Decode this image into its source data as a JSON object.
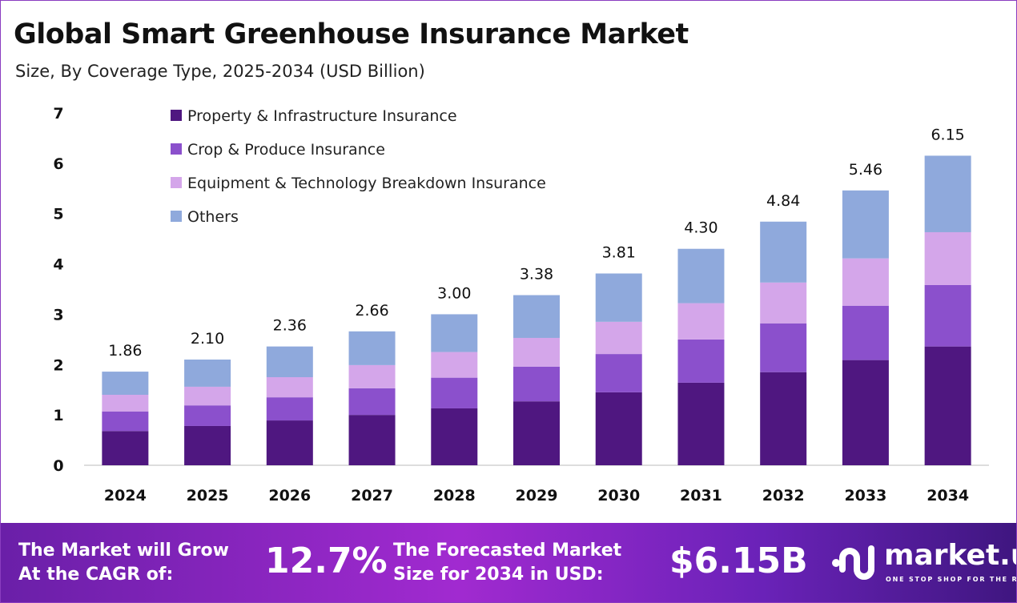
{
  "header": {
    "title": "Global Smart Greenhouse Insurance Market",
    "subtitle": "Size, By Coverage Type, 2025-2034 (USD Billion)"
  },
  "chart_data": {
    "type": "bar",
    "stacked": true,
    "categories": [
      "2024",
      "2025",
      "2026",
      "2027",
      "2028",
      "2029",
      "2030",
      "2031",
      "2032",
      "2033",
      "2034"
    ],
    "series": [
      {
        "name": "Property & Infrastructure Insurance",
        "color": "#4f1780",
        "values": [
          0.68,
          0.78,
          0.89,
          1.0,
          1.13,
          1.27,
          1.45,
          1.64,
          1.85,
          2.09,
          2.36
        ]
      },
      {
        "name": "Crop & Produce Insurance",
        "color": "#8b50cc",
        "values": [
          0.39,
          0.41,
          0.46,
          0.53,
          0.61,
          0.69,
          0.76,
          0.86,
          0.97,
          1.08,
          1.22
        ]
      },
      {
        "name": "Equipment & Technology Breakdown Insurance",
        "color": "#d4a6ea",
        "values": [
          0.33,
          0.37,
          0.4,
          0.46,
          0.51,
          0.57,
          0.64,
          0.72,
          0.81,
          0.94,
          1.05
        ]
      },
      {
        "name": "Others",
        "color": "#8fa9dc",
        "values": [
          0.46,
          0.54,
          0.61,
          0.67,
          0.75,
          0.85,
          0.96,
          1.08,
          1.21,
          1.35,
          1.52
        ]
      }
    ],
    "totals": [
      "1.86",
      "2.10",
      "2.36",
      "2.66",
      "3.00",
      "3.38",
      "3.81",
      "4.30",
      "4.84",
      "5.46",
      "6.15"
    ],
    "yticks": [
      "0",
      "1",
      "2",
      "3",
      "4",
      "5",
      "6",
      "7"
    ],
    "ylim": [
      0,
      7
    ],
    "grid": false,
    "legend": "top-left"
  },
  "footer": {
    "cagr_label_1": "The Market will Grow",
    "cagr_label_2": "At the CAGR of:",
    "cagr_value": "12.7%",
    "forecast_label_1": "The Forecasted Market",
    "forecast_label_2": "Size for 2034 in USD:",
    "forecast_value": "$6.15B",
    "logo_word": "market.us",
    "logo_tagline": "ONE STOP SHOP FOR THE REPORTS"
  }
}
